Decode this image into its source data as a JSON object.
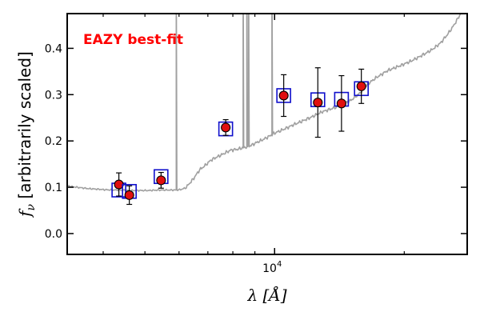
{
  "chart_data": {
    "type": "scatter",
    "title": "",
    "annotation": "EAZY best-fit",
    "annotation_color": "#ff0000",
    "xlabel": {
      "symbol": "λ",
      "unit": "Å"
    },
    "ylabel": {
      "symbol": "f",
      "subscript": "ν",
      "text": "[arbitrarily scaled]"
    },
    "x_scale": "log",
    "xlim": [
      3300,
      28000
    ],
    "ylim": [
      -0.045,
      0.475
    ],
    "y_ticks": [
      0.0,
      0.1,
      0.2,
      0.3,
      0.4
    ],
    "y_tick_labels": [
      "0.0",
      "0.1",
      "0.2",
      "0.3",
      "0.4"
    ],
    "x_major_ticks": [
      10000
    ],
    "x_major_tick_labels": [
      {
        "base": "10",
        "exp": "4"
      }
    ],
    "x_minor_ticks": [
      4000,
      5000,
      6000,
      7000,
      8000,
      9000,
      20000
    ],
    "colors": {
      "sed": "#a0a0a0",
      "model_box": "#1010cc",
      "point_fill": "#e01010",
      "point_edge": "#000000",
      "errorbar": "#000000"
    },
    "photometry": [
      {
        "wavelength": 4350,
        "flux": 0.106,
        "err": 0.025,
        "model": 0.094
      },
      {
        "wavelength": 4600,
        "flux": 0.083,
        "err": 0.02,
        "model": 0.091
      },
      {
        "wavelength": 5450,
        "flux": 0.115,
        "err": 0.017,
        "model": 0.123
      },
      {
        "wavelength": 7700,
        "flux": 0.229,
        "err": 0.017,
        "model": 0.226
      },
      {
        "wavelength": 10500,
        "flux": 0.298,
        "err": 0.045,
        "model": 0.298
      },
      {
        "wavelength": 12600,
        "flux": 0.283,
        "err": 0.075,
        "model": 0.289
      },
      {
        "wavelength": 14300,
        "flux": 0.281,
        "err": 0.06,
        "model": 0.29
      },
      {
        "wavelength": 15900,
        "flux": 0.318,
        "err": 0.037,
        "model": 0.313
      }
    ],
    "sed_continuum": [
      [
        3300,
        0.103
      ],
      [
        3400,
        0.101
      ],
      [
        3550,
        0.099
      ],
      [
        3700,
        0.097
      ],
      [
        3850,
        0.096
      ],
      [
        4000,
        0.095
      ],
      [
        4200,
        0.094
      ],
      [
        4400,
        0.094
      ],
      [
        4600,
        0.093
      ],
      [
        4850,
        0.093
      ],
      [
        5100,
        0.093
      ],
      [
        5400,
        0.094
      ],
      [
        5650,
        0.094
      ],
      [
        5900,
        0.094
      ],
      [
        6050,
        0.095
      ],
      [
        6150,
        0.097
      ],
      [
        6250,
        0.101
      ],
      [
        6500,
        0.12
      ],
      [
        6700,
        0.138
      ],
      [
        6900,
        0.147
      ],
      [
        7100,
        0.158
      ],
      [
        7300,
        0.164
      ],
      [
        7600,
        0.172
      ],
      [
        7900,
        0.18
      ],
      [
        8200,
        0.182
      ],
      [
        8500,
        0.186
      ],
      [
        8800,
        0.19
      ],
      [
        9100,
        0.197
      ],
      [
        9500,
        0.205
      ],
      [
        10000,
        0.217
      ],
      [
        10500,
        0.225
      ],
      [
        11000,
        0.234
      ],
      [
        11600,
        0.243
      ],
      [
        12200,
        0.252
      ],
      [
        12900,
        0.263
      ],
      [
        13600,
        0.27
      ],
      [
        14300,
        0.277
      ],
      [
        15100,
        0.289
      ],
      [
        15900,
        0.306
      ],
      [
        16500,
        0.324
      ],
      [
        17300,
        0.338
      ],
      [
        18300,
        0.352
      ],
      [
        19500,
        0.362
      ],
      [
        20800,
        0.373
      ],
      [
        22000,
        0.385
      ],
      [
        23200,
        0.397
      ],
      [
        24300,
        0.412
      ],
      [
        25200,
        0.43
      ],
      [
        26000,
        0.448
      ],
      [
        26700,
        0.466
      ],
      [
        27200,
        0.48
      ]
    ],
    "sed_emission_lines": [
      {
        "wavelength": 5910,
        "peak": 0.6
      },
      {
        "wavelength": 8450,
        "peak": 0.6
      },
      {
        "wavelength": 8620,
        "peak": 0.6
      },
      {
        "wavelength": 8700,
        "peak": 0.6
      },
      {
        "wavelength": 9860,
        "peak": 0.6
      }
    ]
  }
}
